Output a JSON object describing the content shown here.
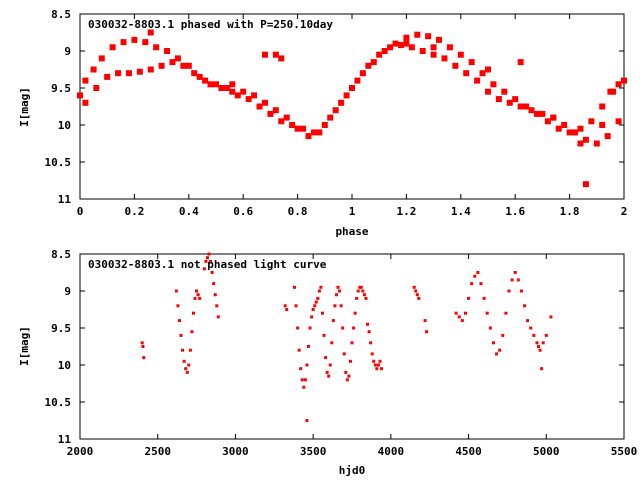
{
  "chart_data": [
    {
      "type": "scatter",
      "title": "030032-8803.1 phased with P=250.10day",
      "xlabel": "phase",
      "ylabel": "I[mag]",
      "xlim": [
        0,
        2
      ],
      "ylim": [
        11,
        8.5
      ],
      "y_inverted": true,
      "grid": false,
      "x_ticks": [
        "0",
        "0.2",
        "0.4",
        "0.6",
        "0.8",
        "1",
        "1.2",
        "1.4",
        "1.6",
        "1.8",
        "2"
      ],
      "y_ticks": [
        "8.5",
        "9",
        "9.5",
        "10",
        "10.5",
        "11"
      ],
      "marker_color": "#ff0000",
      "series": [
        {
          "x": [
            0.0,
            0.02,
            0.05,
            0.08,
            0.12,
            0.16,
            0.2,
            0.24,
            0.28,
            0.32,
            0.36,
            0.4,
            0.44,
            0.48,
            0.52,
            0.56,
            0.6,
            0.64,
            0.68,
            0.72,
            0.76,
            0.8,
            0.84,
            0.88,
            0.92,
            0.96,
            1.0,
            1.04,
            1.08,
            1.12,
            1.16,
            1.2,
            1.24,
            1.28,
            1.32,
            1.36,
            1.4,
            1.44,
            1.48,
            1.52,
            1.56,
            1.6,
            1.64,
            1.68,
            1.72,
            1.76,
            1.8,
            1.84,
            1.88,
            1.92,
            1.96,
            2.0,
            0.02,
            0.06,
            0.1,
            0.14,
            0.18,
            0.22,
            0.26,
            0.3,
            0.34,
            0.38,
            0.42,
            0.46,
            0.5,
            0.54,
            0.58,
            0.62,
            0.66,
            0.7,
            0.74,
            0.78,
            0.82,
            0.86,
            0.9,
            0.94,
            0.98,
            1.02,
            1.06,
            1.1,
            1.14,
            1.18,
            1.22,
            1.26,
            1.3,
            1.34,
            1.38,
            1.42,
            1.46,
            1.5,
            1.54,
            1.58,
            1.62,
            1.66,
            1.7,
            1.74,
            1.78,
            1.82,
            1.86,
            1.9,
            1.94,
            1.98,
            0.68,
            0.72,
            0.74,
            1.3,
            1.5,
            1.62,
            1.74,
            1.84,
            1.86,
            1.92,
            1.95,
            1.98,
            0.26,
            0.56,
            1.2
          ],
          "y": [
            9.6,
            9.4,
            9.25,
            9.1,
            8.95,
            8.88,
            8.85,
            8.88,
            8.95,
            9.0,
            9.1,
            9.2,
            9.35,
            9.45,
            9.5,
            9.55,
            9.55,
            9.6,
            9.7,
            9.8,
            9.9,
            10.05,
            10.15,
            10.1,
            9.9,
            9.7,
            9.5,
            9.3,
            9.15,
            9.0,
            8.9,
            8.82,
            8.78,
            8.8,
            8.85,
            8.95,
            9.05,
            9.15,
            9.3,
            9.45,
            9.55,
            9.65,
            9.75,
            9.85,
            9.95,
            10.05,
            10.1,
            10.05,
            9.95,
            9.75,
            9.55,
            9.4,
            9.7,
            9.5,
            9.35,
            9.3,
            9.3,
            9.28,
            9.25,
            9.2,
            9.15,
            9.2,
            9.3,
            9.4,
            9.45,
            9.5,
            9.6,
            9.65,
            9.75,
            9.85,
            9.95,
            10.0,
            10.05,
            10.1,
            10.0,
            9.8,
            9.6,
            9.4,
            9.2,
            9.05,
            8.95,
            8.92,
            8.95,
            9.0,
            9.05,
            9.1,
            9.2,
            9.3,
            9.4,
            9.55,
            9.65,
            9.7,
            9.75,
            9.8,
            9.85,
            9.9,
            10.0,
            10.1,
            10.2,
            10.25,
            10.15,
            9.95,
            9.05,
            9.05,
            9.1,
            8.95,
            9.25,
            9.15,
            9.9,
            10.25,
            10.8,
            10.0,
            9.55,
            9.45,
            8.75,
            9.45,
            8.9
          ]
        }
      ]
    },
    {
      "type": "scatter",
      "title": "030032-8803.1 not phased light curve",
      "xlabel": "hjd0",
      "ylabel": "I[mag]",
      "xlim": [
        2000,
        5500
      ],
      "ylim": [
        11,
        8.5
      ],
      "y_inverted": true,
      "grid": false,
      "x_ticks": [
        "2000",
        "2500",
        "3000",
        "3500",
        "4000",
        "4500",
        "5000",
        "5500"
      ],
      "y_ticks": [
        "8.5",
        "9",
        "9.5",
        "10",
        "10.5",
        "11"
      ],
      "marker_color": "#ff0000",
      "series": [
        {
          "x": [
            2400,
            2405,
            2410,
            2620,
            2630,
            2640,
            2650,
            2660,
            2670,
            2680,
            2690,
            2700,
            2710,
            2720,
            2730,
            2740,
            2750,
            2760,
            2770,
            2800,
            2810,
            2820,
            2830,
            2840,
            2850,
            2860,
            2870,
            2880,
            2890,
            3320,
            3330,
            3380,
            3390,
            3400,
            3410,
            3420,
            3430,
            3440,
            3450,
            3460,
            3470,
            3480,
            3490,
            3500,
            3510,
            3520,
            3530,
            3540,
            3550,
            3560,
            3570,
            3580,
            3590,
            3600,
            3610,
            3620,
            3630,
            3640,
            3650,
            3660,
            3670,
            3680,
            3690,
            3700,
            3710,
            3720,
            3730,
            3740,
            3750,
            3760,
            3770,
            3780,
            3790,
            3800,
            3810,
            3820,
            3830,
            3840,
            3850,
            3860,
            3870,
            3880,
            3890,
            3900,
            3910,
            3920,
            3930,
            3940,
            4150,
            4160,
            4170,
            4180,
            4220,
            4230,
            4420,
            4440,
            4460,
            4480,
            4500,
            4520,
            4540,
            4560,
            4580,
            4600,
            4620,
            4640,
            4660,
            4680,
            4700,
            4720,
            4740,
            4760,
            4780,
            4800,
            4820,
            4840,
            4860,
            4880,
            4900,
            4920,
            4940,
            4950,
            4960,
            4970,
            4980,
            5000,
            5030,
            3460
          ],
          "y": [
            9.7,
            9.75,
            9.9,
            9.0,
            9.2,
            9.4,
            9.6,
            9.8,
            9.95,
            10.05,
            10.1,
            10.0,
            9.8,
            9.55,
            9.3,
            9.1,
            9.0,
            9.05,
            9.1,
            8.7,
            8.6,
            8.55,
            8.5,
            8.6,
            8.75,
            8.9,
            9.05,
            9.2,
            9.35,
            9.2,
            9.25,
            8.95,
            9.2,
            9.5,
            9.8,
            10.05,
            10.2,
            10.3,
            10.2,
            10.0,
            9.75,
            9.5,
            9.35,
            9.25,
            9.2,
            9.15,
            9.1,
            9.0,
            8.95,
            9.3,
            9.6,
            9.9,
            10.1,
            10.15,
            10.0,
            9.7,
            9.4,
            9.2,
            9.05,
            8.95,
            9.0,
            9.2,
            9.5,
            9.85,
            10.1,
            10.2,
            10.15,
            9.95,
            9.7,
            9.5,
            9.3,
            9.1,
            9.0,
            8.95,
            8.95,
            9.0,
            9.05,
            9.1,
            9.45,
            9.55,
            9.7,
            9.85,
            9.95,
            10.0,
            10.05,
            10.0,
            9.95,
            10.05,
            8.95,
            9.0,
            9.05,
            9.1,
            9.4,
            9.55,
            9.3,
            9.35,
            9.4,
            9.3,
            9.1,
            8.9,
            8.8,
            8.75,
            8.9,
            9.1,
            9.3,
            9.5,
            9.7,
            9.85,
            9.8,
            9.6,
            9.3,
            9.0,
            8.85,
            8.75,
            8.85,
            9.0,
            9.2,
            9.4,
            9.5,
            9.6,
            9.7,
            9.75,
            9.8,
            10.05,
            9.7,
            9.6,
            9.35,
            10.75
          ]
        }
      ]
    }
  ]
}
